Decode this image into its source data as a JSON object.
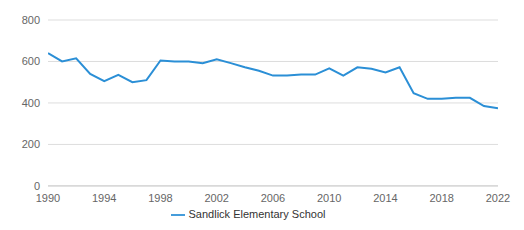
{
  "chart_data": {
    "type": "line",
    "x": [
      1990,
      1991,
      1992,
      1993,
      1994,
      1995,
      1996,
      1997,
      1998,
      1999,
      2000,
      2001,
      2002,
      2003,
      2004,
      2005,
      2006,
      2007,
      2008,
      2009,
      2010,
      2011,
      2012,
      2013,
      2014,
      2015,
      2016,
      2017,
      2018,
      2019,
      2020,
      2021,
      2022
    ],
    "series": [
      {
        "name": "Sandlick Elementary School",
        "color": "#2b8fd6",
        "values": [
          640,
          600,
          615,
          540,
          505,
          535,
          500,
          510,
          605,
          600,
          600,
          592,
          610,
          592,
          572,
          555,
          532,
          532,
          537,
          537,
          567,
          532,
          572,
          565,
          547,
          572,
          447,
          420,
          420,
          425,
          425,
          385,
          375
        ]
      }
    ],
    "xlim": [
      1990,
      2022
    ],
    "xticks": [
      1990,
      1994,
      1998,
      2002,
      2006,
      2010,
      2014,
      2018,
      2022
    ],
    "ylim": [
      0,
      800
    ],
    "yticks": [
      0,
      200,
      400,
      600,
      800
    ],
    "grid": true,
    "legend": "bottom"
  }
}
